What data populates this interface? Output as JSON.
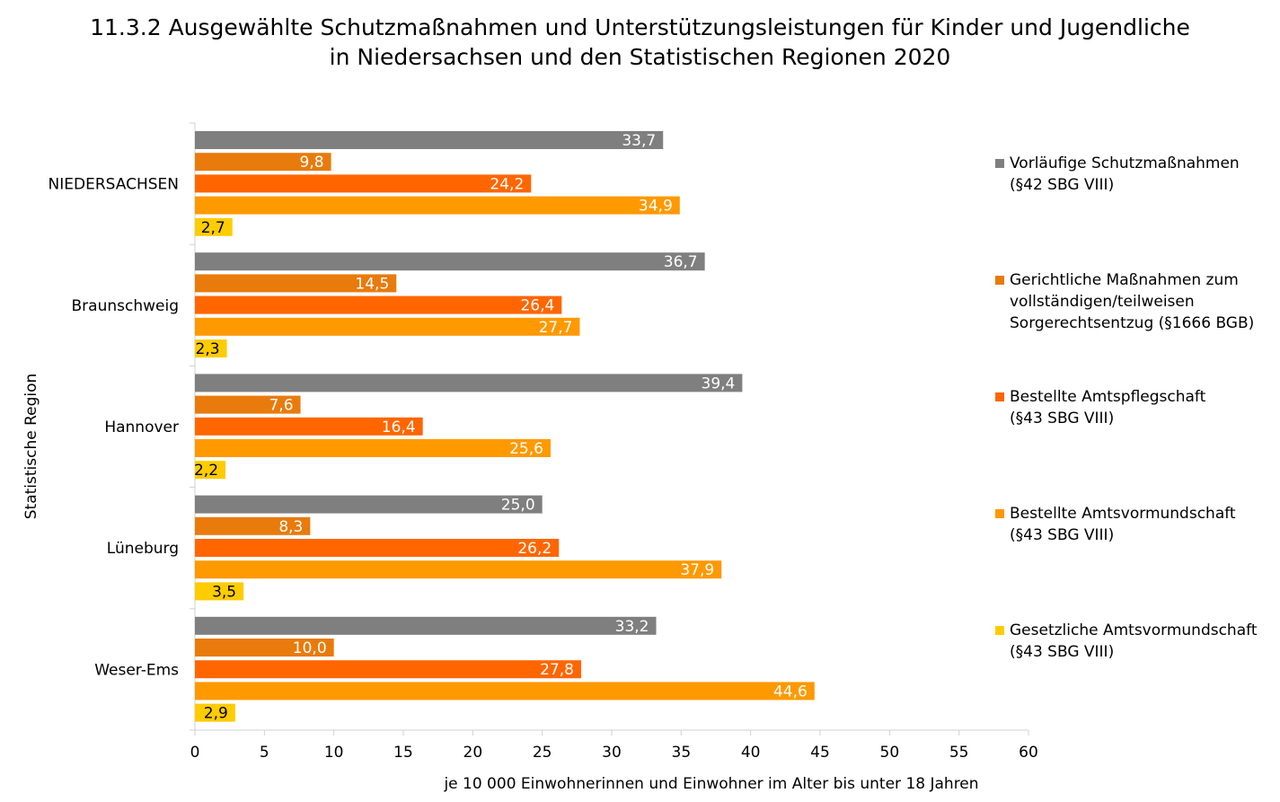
{
  "chart_data": {
    "type": "bar",
    "orientation": "horizontal",
    "title": [
      "11.3.2 Ausgewählte Schutzmaßnahmen und Unterstützungsleistungen für Kinder und Jugendliche",
      "in Niedersachsen und den Statistischen Regionen 2020"
    ],
    "ylabel": "Statistische Region",
    "xlabel": "je 10 000 Einwohnerinnen und Einwohner im Alter bis unter 18 Jahren",
    "categories": [
      "NIEDERSACHSEN",
      "Braunschweig",
      "Hannover",
      "Lüneburg",
      "Weser-Ems"
    ],
    "xlim": [
      0,
      60
    ],
    "xticks": [
      "0",
      "5",
      "10",
      "15",
      "20",
      "25",
      "30",
      "35",
      "40",
      "45",
      "50",
      "55",
      "60"
    ],
    "grid": false,
    "legend_position": "right",
    "series": [
      {
        "name": "Vorläufige Schutzmaßnahmen\n(§42 SBG VIII)",
        "color": "#7f7f7f",
        "label_color": "#ffffff",
        "values": [
          33.7,
          36.7,
          39.4,
          25.0,
          33.2
        ],
        "labels": [
          "33,7",
          "36,7",
          "39,4",
          "25,0",
          "33,2"
        ]
      },
      {
        "name": "Gerichtliche Maßnahmen zum\nvollständigen/teilweisen\nSorgerechtsentzug (§1666 BGB)",
        "color": "#e87b0c",
        "label_color": "#ffffff",
        "values": [
          9.8,
          14.5,
          7.6,
          8.3,
          10.0
        ],
        "labels": [
          "9,8",
          "14,5",
          "7,6",
          "8,3",
          "10,0"
        ]
      },
      {
        "name": "Bestellte Amtspflegschaft\n(§43 SBG VIII)",
        "color": "#ff6600",
        "label_color": "#ffffff",
        "values": [
          24.2,
          26.4,
          16.4,
          26.2,
          27.8
        ],
        "labels": [
          "24,2",
          "26,4",
          "16,4",
          "26,2",
          "27,8"
        ]
      },
      {
        "name": "Bestellte Amtsvormundschaft\n(§43 SBG VIII)",
        "color": "#ff9900",
        "label_color": "#ffffff",
        "values": [
          34.9,
          27.7,
          25.6,
          37.9,
          44.6
        ],
        "labels": [
          "34,9",
          "27,7",
          "25,6",
          "37,9",
          "44,6"
        ]
      },
      {
        "name": "Gesetzliche Amtsvormundschaft\n(§43 SBG VIII)",
        "color": "#ffcc00",
        "label_color": "#000000",
        "values": [
          2.7,
          2.3,
          2.2,
          3.5,
          2.9
        ],
        "labels": [
          "2,7",
          "2,3",
          "2,2",
          "3,5",
          "2,9"
        ]
      }
    ]
  }
}
